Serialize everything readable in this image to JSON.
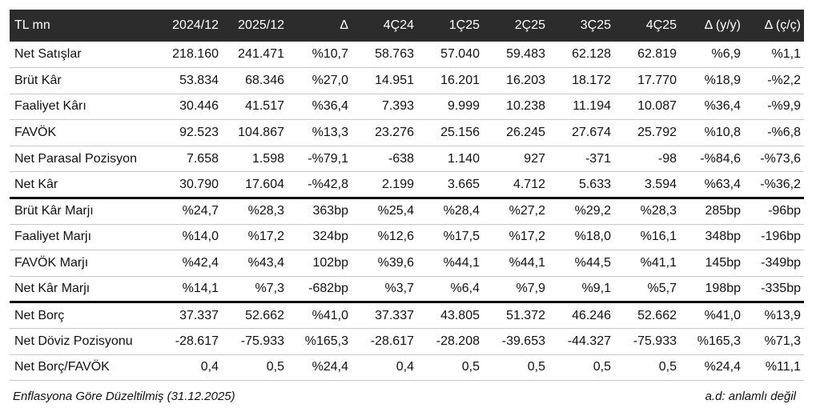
{
  "table": {
    "headers": [
      "TL mn",
      "2024/12",
      "2025/12",
      "Δ",
      "4Ç24",
      "1Ç25",
      "2Ç25",
      "3Ç25",
      "4Ç25",
      "Δ (y/y)",
      "Δ (ç/ç)"
    ],
    "rows": [
      [
        "Net Satışlar",
        "218.160",
        "241.471",
        "%10,7",
        "58.763",
        "57.040",
        "59.483",
        "62.128",
        "62.819",
        "%6,9",
        "%1,1"
      ],
      [
        "Brüt Kâr",
        "53.834",
        "68.346",
        "%27,0",
        "14.951",
        "16.201",
        "16.203",
        "18.172",
        "17.770",
        "%18,9",
        "-%2,2"
      ],
      [
        "Faaliyet Kârı",
        "30.446",
        "41.517",
        "%36,4",
        "7.393",
        "9.999",
        "10.238",
        "11.194",
        "10.087",
        "%36,4",
        "-%9,9"
      ],
      [
        "FAVÖK",
        "92.523",
        "104.867",
        "%13,3",
        "23.276",
        "25.156",
        "26.245",
        "27.674",
        "25.792",
        "%10,8",
        "-%6,8"
      ],
      [
        "Net Parasal Pozisyon",
        "7.658",
        "1.598",
        "-%79,1",
        "-638",
        "1.140",
        "927",
        "-371",
        "-98",
        "-%84,6",
        "-%73,6"
      ],
      [
        "Net Kâr",
        "30.790",
        "17.604",
        "-%42,8",
        "2.199",
        "3.665",
        "4.712",
        "5.633",
        "3.594",
        "%63,4",
        "-%36,2"
      ],
      [
        "Brüt Kâr Marjı",
        "%24,7",
        "%28,3",
        "363bp",
        "%25,4",
        "%28,4",
        "%27,2",
        "%29,2",
        "%28,3",
        "285bp",
        "-96bp"
      ],
      [
        "Faaliyet Marjı",
        "%14,0",
        "%17,2",
        "324bp",
        "%12,6",
        "%17,5",
        "%17,2",
        "%18,0",
        "%16,1",
        "348bp",
        "-196bp"
      ],
      [
        "FAVÖK Marjı",
        "%42,4",
        "%43,4",
        "102bp",
        "%39,6",
        "%44,1",
        "%44,1",
        "%44,5",
        "%41,1",
        "145bp",
        "-349bp"
      ],
      [
        "Net Kâr Marjı",
        "%14,1",
        "%7,3",
        "-682bp",
        "%3,7",
        "%6,4",
        "%7,9",
        "%9,1",
        "%5,7",
        "198bp",
        "-335bp"
      ],
      [
        "Net Borç",
        "37.337",
        "52.662",
        "%41,0",
        "37.337",
        "43.805",
        "51.372",
        "46.246",
        "52.662",
        "%41,0",
        "%13,9"
      ],
      [
        "Net Döviz Pozisyonu",
        "-28.617",
        "-75.933",
        "%165,3",
        "-28.617",
        "-28.208",
        "-39.653",
        "-44.327",
        "-75.933",
        "%165,3",
        "%71,3"
      ],
      [
        "Net Borç/FAVÖK",
        "0,4",
        "0,5",
        "%24,4",
        "0,4",
        "0,5",
        "0,5",
        "0,5",
        "0,5",
        "%24,4",
        "%11,1"
      ]
    ]
  },
  "footer": {
    "left": "Enflasyona Göre Düzeltilmiş (31.12.2025)",
    "right": "a.d: anlamlı değil"
  }
}
